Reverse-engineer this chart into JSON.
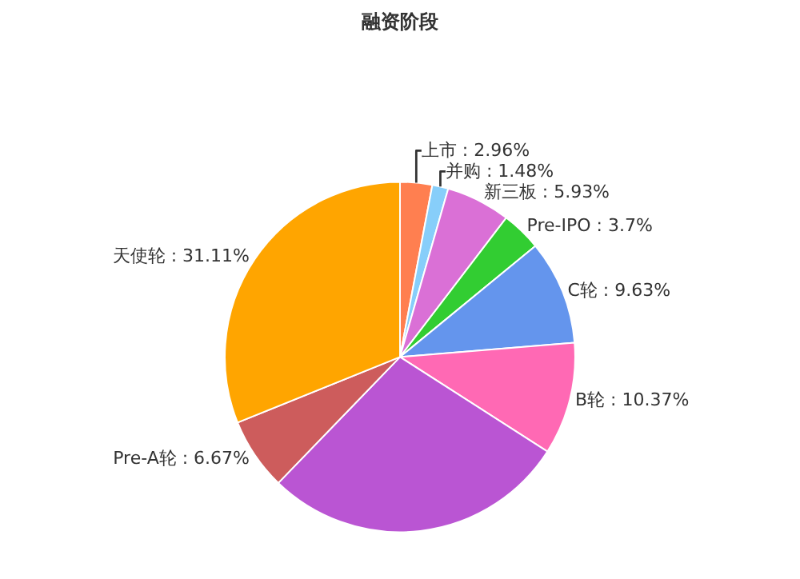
{
  "chart_data": {
    "type": "pie",
    "title": "融资阶段",
    "categories": [
      "上市",
      "并购",
      "新三板",
      "Pre-IPO",
      "C轮",
      "B轮",
      null,
      "Pre-A轮",
      "天使轮"
    ],
    "values": [
      2.96,
      1.48,
      5.93,
      3.7,
      9.63,
      10.37,
      28.15,
      6.67,
      31.11
    ],
    "value_labels": [
      "2.96%",
      "1.48%",
      "5.93%",
      "3.7%",
      "9.63%",
      "10.37%",
      null,
      "6.67%",
      "31.11%"
    ],
    "colors": [
      "#ff7f50",
      "#87cefa",
      "#da70d6",
      "#32cd32",
      "#6495ed",
      "#ff69b4",
      "#ba55d3",
      "#cd5c5c",
      "#ffa500"
    ],
    "legend": false
  }
}
